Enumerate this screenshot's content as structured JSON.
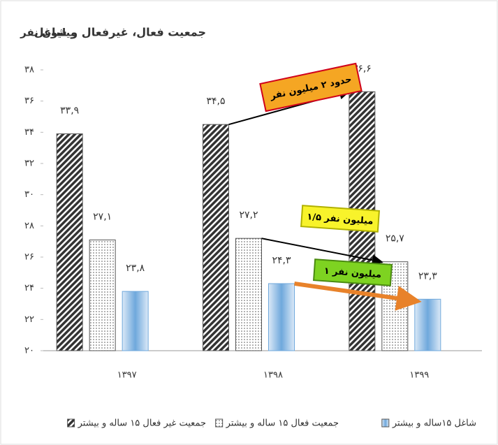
{
  "chart_data": {
    "type": "bar",
    "title": "جمعیت فعال، غیرفعال و شاغل",
    "y_label": "میلیون نفر",
    "categories": [
      "۱۳۹۷",
      "۱۳۹۸",
      "۱۳۹۹"
    ],
    "series": [
      {
        "name": "جمعیت غیر فعال ۱۵ ساله و بیشتر",
        "color": "#333333",
        "pattern": "hatch",
        "values": [
          33.9,
          34.5,
          36.6
        ],
        "value_labels": [
          "۳۳,۹",
          "۳۴,۵",
          "۳۶,۶"
        ]
      },
      {
        "name": "جمعیت فعال ۱۵ ساله و بیشتر",
        "color": "#555555",
        "pattern": "dots",
        "values": [
          27.1,
          27.2,
          25.7
        ],
        "value_labels": [
          "۲۷,۱",
          "۲۷,۲",
          "۲۵,۷"
        ]
      },
      {
        "name": "شاغل ۱۵ساله و بیشتر",
        "color": "#6fa8dc",
        "pattern": "gradient",
        "values": [
          23.8,
          24.3,
          23.3
        ],
        "value_labels": [
          "۲۳,۸",
          "۲۴,۳",
          "۲۳,۳"
        ]
      }
    ],
    "annotations": [
      {
        "text": "حدود ۲ میلیون نفر",
        "fill": "#f5a623",
        "border": "#d0021b"
      },
      {
        "text": "۱/۵ میلیون نفر",
        "fill": "#f8f32b",
        "border": "#b0b000"
      },
      {
        "text": "۱ میلیون نفر",
        "fill": "#7ed321",
        "border": "#4a8a10"
      }
    ],
    "ylim": [
      20,
      38
    ],
    "yticks": [
      {
        "value": 20,
        "label": "۲۰"
      },
      {
        "value": 22,
        "label": "۲۲"
      },
      {
        "value": 24,
        "label": "۲۴"
      },
      {
        "value": 26,
        "label": "۲۶"
      },
      {
        "value": 28,
        "label": "۲۸"
      },
      {
        "value": 30,
        "label": "۳۰"
      },
      {
        "value": 32,
        "label": "۳۲"
      },
      {
        "value": 34,
        "label": "۳۴"
      },
      {
        "value": 36,
        "label": "۳۶"
      },
      {
        "value": 38,
        "label": "۳۸"
      }
    ],
    "grid": false
  }
}
